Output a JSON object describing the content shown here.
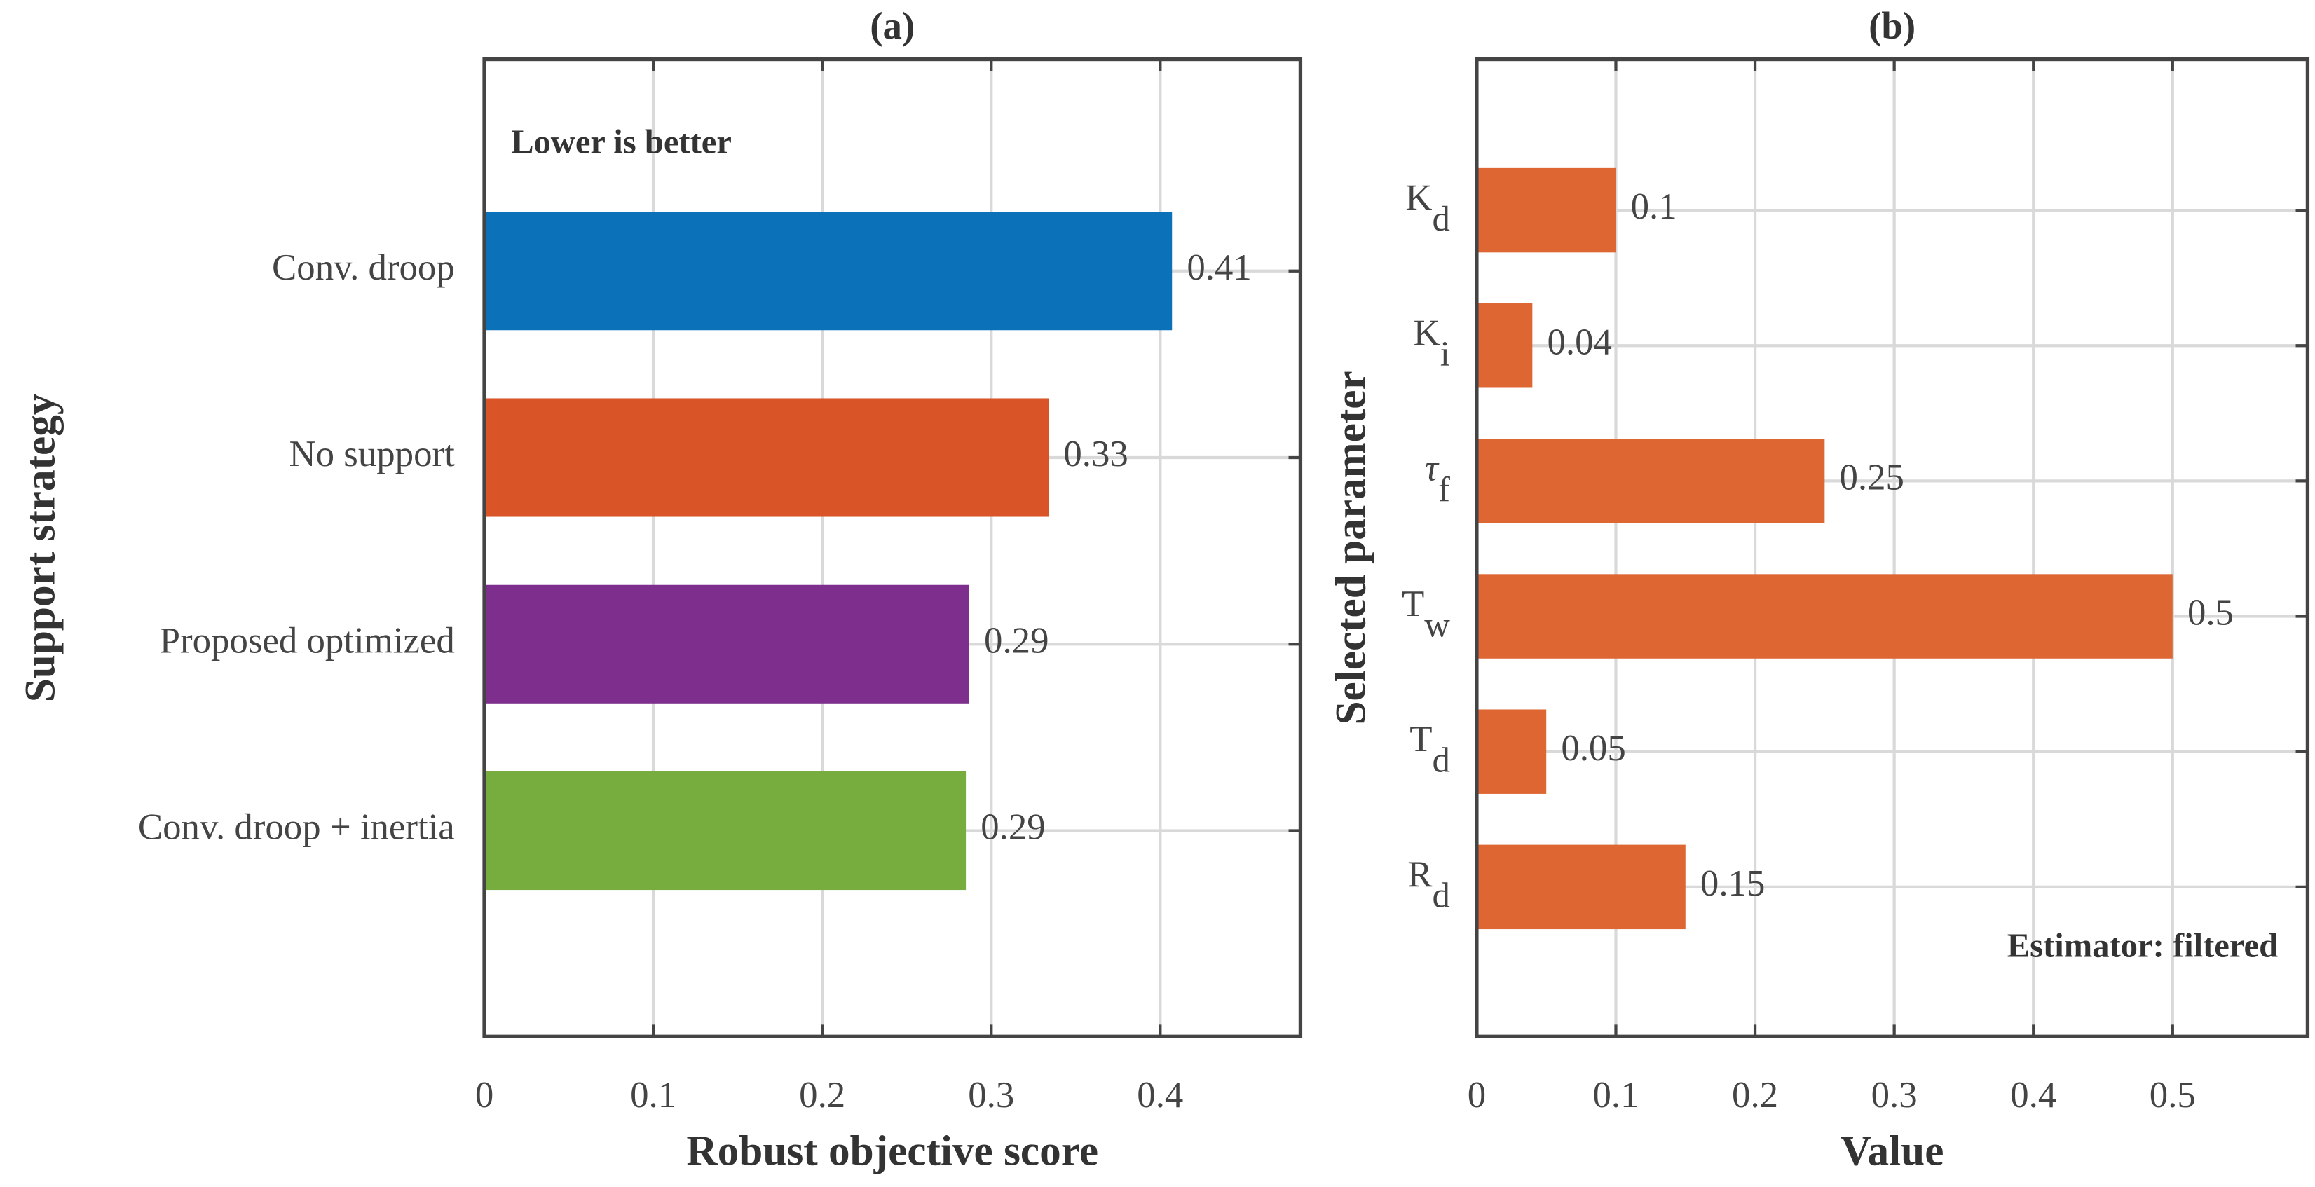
{
  "chart_data": [
    {
      "type": "barh",
      "title": "(a)",
      "xlabel": "Robust objective score",
      "ylabel": "Support strategy",
      "annotation": "Lower is better",
      "categories": [
        "Conv. droop",
        "No support",
        "Proposed optimized",
        "Conv. droop + inertia"
      ],
      "values": [
        0.407,
        0.334,
        0.287,
        0.285
      ],
      "value_labels": [
        "0.41",
        "0.33",
        "0.29",
        "0.29"
      ],
      "colors": [
        "#0b72b9",
        "#d95427",
        "#7e2f8e",
        "#77ac3f"
      ],
      "xlim": [
        0,
        0.483
      ],
      "xticks": [
        0,
        0.1,
        0.2,
        0.3,
        0.4
      ],
      "grid": true
    },
    {
      "type": "barh",
      "title": "(b)",
      "xlabel": "Value",
      "ylabel": "Selected parameter",
      "annotation": "Estimator: filtered",
      "categories": [
        {
          "base": "K",
          "sub": "d"
        },
        {
          "base": "K",
          "sub": "i"
        },
        {
          "base": "τ",
          "sub": "f"
        },
        {
          "base": "T",
          "sub": "w"
        },
        {
          "base": "T",
          "sub": "d"
        },
        {
          "base": "R",
          "sub": "d"
        }
      ],
      "values": [
        0.1,
        0.04,
        0.25,
        0.5,
        0.05,
        0.15
      ],
      "colors": [
        "#dd6633",
        "#dd6633",
        "#dd6633",
        "#dd6633",
        "#dd6633",
        "#dd6633"
      ],
      "xlim": [
        0,
        0.597
      ],
      "xticks": [
        0,
        0.1,
        0.2,
        0.3,
        0.4,
        0.5
      ],
      "grid": true
    }
  ]
}
